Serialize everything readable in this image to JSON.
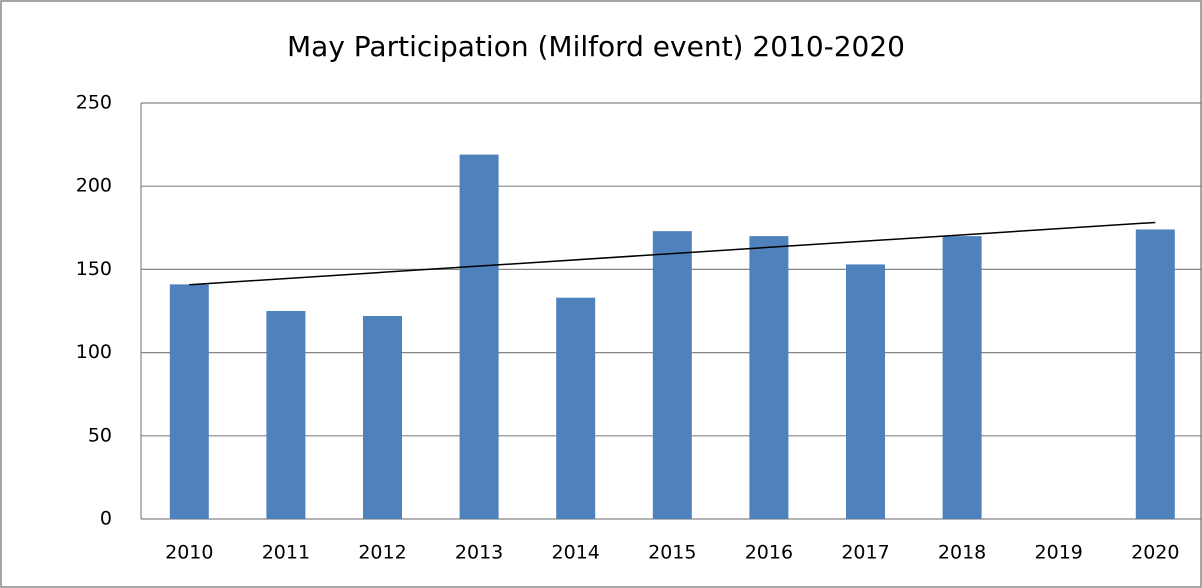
{
  "chart_data": {
    "type": "bar",
    "title": "May Participation (Milford event) 2010-2020",
    "categories": [
      "2010",
      "2011",
      "2012",
      "2013",
      "2014",
      "2015",
      "2016",
      "2017",
      "2018",
      "2019",
      "2020"
    ],
    "values": [
      141,
      125,
      122,
      219,
      133,
      173,
      170,
      153,
      170,
      null,
      174
    ],
    "color": "#4f81bd",
    "ylim": [
      0,
      250
    ],
    "yticks": [
      0,
      50,
      100,
      150,
      200,
      250
    ],
    "grid": true,
    "trendline": "linear"
  }
}
